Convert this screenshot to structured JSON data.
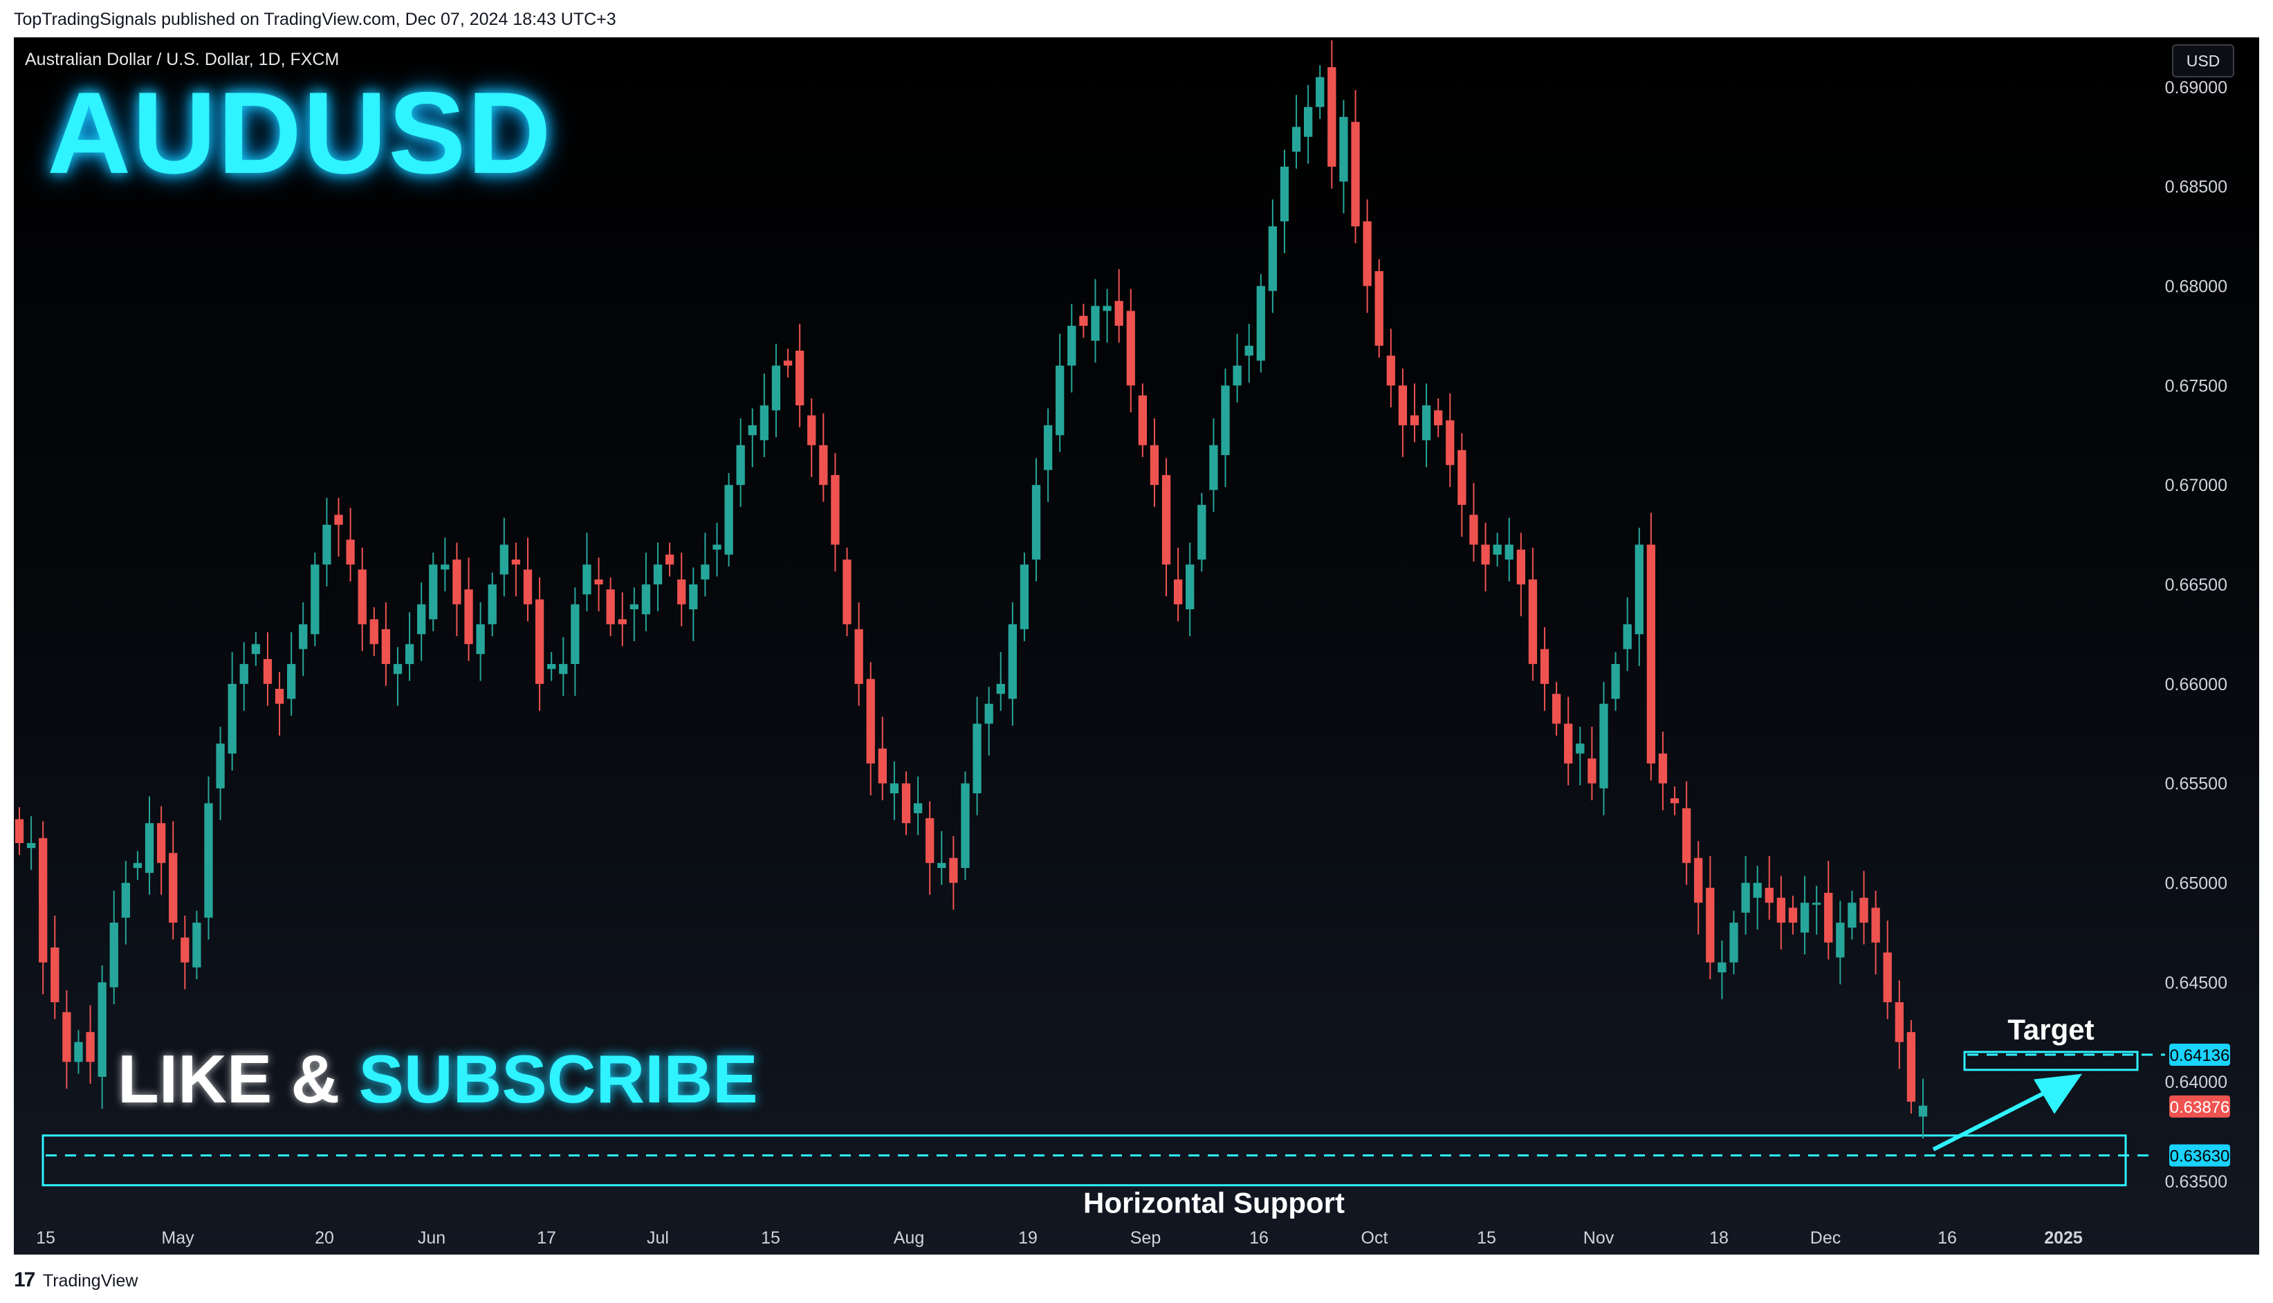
{
  "header": {
    "published": "TopTradingSignals published on TradingView.com, Dec 07, 2024 18:43 UTC+3"
  },
  "chart_header": {
    "symbol": "Australian Dollar / U.S. Dollar, 1D, FXCM",
    "currency": "USD"
  },
  "overlay": {
    "title": "AUDUSD",
    "cta_like": "LIKE & ",
    "cta_subscribe": "SUBSCRIBE",
    "target_label": "Target",
    "support_label": "Horizontal Support"
  },
  "footer": {
    "logo_glyph": "17",
    "brand": "TradingView"
  },
  "colors": {
    "up": "#26a69a",
    "down": "#ef5350",
    "accent": "#2ff3ff",
    "target_badge": "#1ad3ff",
    "price_badge": "#ef5350"
  },
  "chart_data": {
    "type": "candlestick",
    "title": "Australian Dollar / U.S. Dollar, 1D, FXCM",
    "ylim": [
      0.6334,
      0.6925
    ],
    "y_ticks": [
      "0.69000",
      "0.68500",
      "0.68000",
      "0.67500",
      "0.67000",
      "0.66500",
      "0.66000",
      "0.65500",
      "0.65000",
      "0.64500",
      "0.64000",
      "0.63500"
    ],
    "x_ticks": [
      "15",
      "May",
      "20",
      "Jun",
      "17",
      "Jul",
      "15",
      "Aug",
      "19",
      "Sep",
      "16",
      "Oct",
      "15",
      "Nov",
      "18",
      "Dec",
      "16",
      "2025"
    ],
    "close_path": [
      0.652,
      0.652,
      0.646,
      0.644,
      0.641,
      0.642,
      0.641,
      0.645,
      0.648,
      0.65,
      0.651,
      0.653,
      0.651,
      0.648,
      0.646,
      0.648,
      0.654,
      0.657,
      0.66,
      0.661,
      0.662,
      0.66,
      0.659,
      0.661,
      0.663,
      0.666,
      0.668,
      0.668,
      0.666,
      0.663,
      0.662,
      0.661,
      0.661,
      0.662,
      0.664,
      0.666,
      0.666,
      0.664,
      0.662,
      0.663,
      0.665,
      0.667,
      0.666,
      0.664,
      0.66,
      0.661,
      0.661,
      0.664,
      0.666,
      0.665,
      0.663,
      0.663,
      0.664,
      0.665,
      0.666,
      0.666,
      0.664,
      0.665,
      0.666,
      0.667,
      0.67,
      0.672,
      0.673,
      0.674,
      0.676,
      0.676,
      0.674,
      0.672,
      0.67,
      0.667,
      0.663,
      0.66,
      0.656,
      0.655,
      0.655,
      0.653,
      0.654,
      0.651,
      0.651,
      0.65,
      0.655,
      0.658,
      0.659,
      0.66,
      0.663,
      0.666,
      0.67,
      0.673,
      0.676,
      0.678,
      0.678,
      0.679,
      0.679,
      0.678,
      0.675,
      0.672,
      0.67,
      0.666,
      0.664,
      0.666,
      0.669,
      0.672,
      0.675,
      0.676,
      0.677,
      0.68,
      0.683,
      0.686,
      0.688,
      0.689,
      0.6905,
      0.686,
      0.6885,
      0.683,
      0.68,
      0.677,
      0.675,
      0.673,
      0.673,
      0.674,
      0.673,
      0.671,
      0.669,
      0.667,
      0.666,
      0.667,
      0.667,
      0.665,
      0.661,
      0.66,
      0.658,
      0.656,
      0.657,
      0.655,
      0.659,
      0.661,
      0.663,
      0.667,
      0.656,
      0.655,
      0.654,
      0.651,
      0.649,
      0.646,
      0.646,
      0.648,
      0.65,
      0.65,
      0.649,
      0.648,
      0.648,
      0.649,
      0.649,
      0.647,
      0.648,
      0.649,
      0.648,
      0.647,
      0.644,
      0.642,
      0.639,
      0.6388
    ],
    "target_price": "0.64136",
    "last_price": "0.63876",
    "support_price": "0.63630",
    "target_value": 0.64136,
    "last_value": 0.63876,
    "support_value": 0.6363,
    "support_zone": [
      0.6348,
      0.6373
    ],
    "target_zone": [
      0.6406,
      0.6415
    ]
  }
}
